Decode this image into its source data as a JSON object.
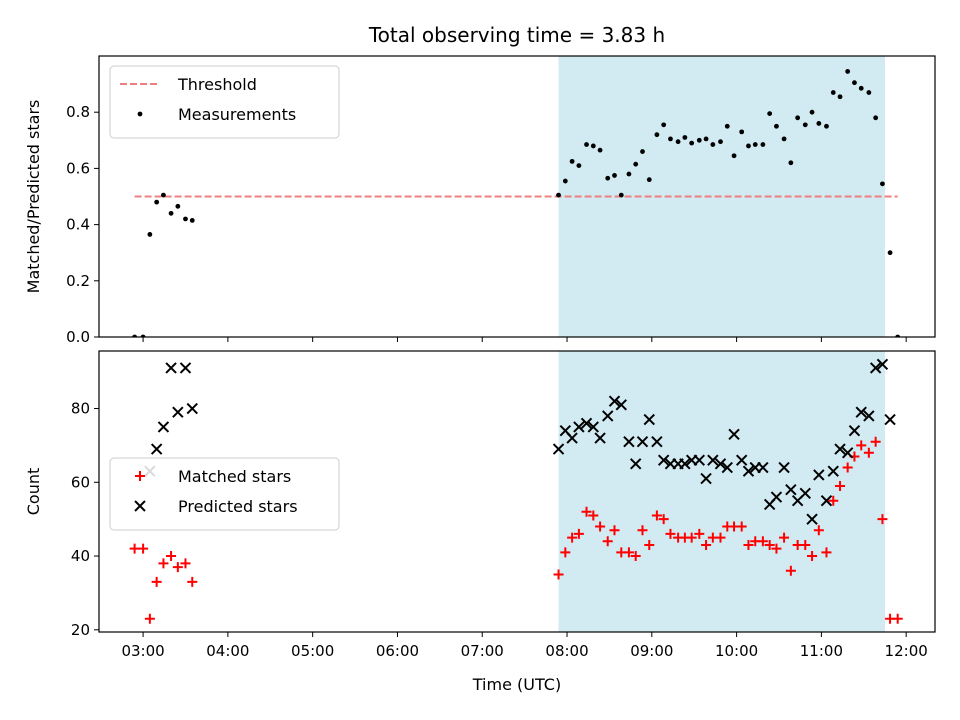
{
  "figure": {
    "title": "Total observing time = 3.83 h",
    "xlabel": "Time (UTC)"
  },
  "colors": {
    "threshold": "#f08080",
    "measurement": "#000000",
    "matched": "#ff0000",
    "predicted": "#000000",
    "span": "#add8e6"
  },
  "chart_data": [
    {
      "type": "scatter",
      "ylabel": "Matched/Predicted stars",
      "ylim": [
        0,
        1
      ],
      "yticks": [
        "0.0",
        "0.2",
        "0.4",
        "0.6",
        "0.8"
      ],
      "ytick_values": [
        0,
        0.2,
        0.4,
        0.6,
        0.8
      ],
      "xlim_hours": [
        2.48,
        12.34
      ],
      "xticks": [
        "03:00",
        "04:00",
        "05:00",
        "06:00",
        "07:00",
        "08:00",
        "09:00",
        "10:00",
        "11:00",
        "12:00"
      ],
      "xtick_hours": [
        3,
        4,
        5,
        6,
        7,
        8,
        9,
        10,
        11,
        12
      ],
      "shaded_span_hours": [
        7.9,
        11.75
      ],
      "legend_position": "upper left",
      "threshold": {
        "name": "Threshold",
        "value": 0.5,
        "x_range_hours": [
          2.9,
          11.9
        ]
      },
      "series": [
        {
          "name": "Measurements",
          "marker": "dot",
          "x_hours": [
            2.9,
            3.0,
            3.08,
            3.16,
            3.24,
            3.33,
            3.41,
            3.5,
            3.58,
            7.9,
            7.98,
            8.06,
            8.14,
            8.23,
            8.31,
            8.39,
            8.48,
            8.56,
            8.64,
            8.73,
            8.81,
            8.89,
            8.97,
            9.06,
            9.14,
            9.22,
            9.31,
            9.39,
            9.47,
            9.56,
            9.64,
            9.72,
            9.81,
            9.89,
            9.97,
            10.06,
            10.14,
            10.22,
            10.31,
            10.39,
            10.47,
            10.56,
            10.64,
            10.72,
            10.81,
            10.89,
            10.97,
            11.06,
            11.14,
            11.22,
            11.31,
            11.39,
            11.47,
            11.56,
            11.64,
            11.72,
            11.81,
            11.9
          ],
          "y": [
            0.0,
            0.0,
            0.365,
            0.48,
            0.505,
            0.44,
            0.465,
            0.42,
            0.415,
            0.505,
            0.555,
            0.625,
            0.61,
            0.685,
            0.68,
            0.665,
            0.565,
            0.575,
            0.505,
            0.58,
            0.615,
            0.66,
            0.56,
            0.72,
            0.755,
            0.705,
            0.695,
            0.71,
            0.69,
            0.7,
            0.705,
            0.685,
            0.695,
            0.75,
            0.645,
            0.73,
            0.68,
            0.685,
            0.685,
            0.795,
            0.75,
            0.705,
            0.62,
            0.78,
            0.755,
            0.8,
            0.76,
            0.75,
            0.87,
            0.855,
            0.945,
            0.905,
            0.885,
            0.87,
            0.78,
            0.545,
            0.3,
            0.0
          ]
        }
      ]
    },
    {
      "type": "scatter",
      "ylabel": "Count",
      "ylim": [
        19.4,
        95.6
      ],
      "yticks": [
        "20",
        "40",
        "60",
        "80"
      ],
      "ytick_values": [
        20,
        40,
        60,
        80
      ],
      "xlim_hours": [
        2.48,
        12.34
      ],
      "xticks": [
        "03:00",
        "04:00",
        "05:00",
        "06:00",
        "07:00",
        "08:00",
        "09:00",
        "10:00",
        "11:00",
        "12:00"
      ],
      "xtick_hours": [
        3,
        4,
        5,
        6,
        7,
        8,
        9,
        10,
        11,
        12
      ],
      "shaded_span_hours": [
        7.9,
        11.75
      ],
      "legend_position": "center left",
      "series": [
        {
          "name": "Matched stars",
          "marker": "plus",
          "x_hours": [
            2.9,
            3.0,
            3.08,
            3.16,
            3.24,
            3.33,
            3.41,
            3.5,
            3.58,
            7.9,
            7.98,
            8.06,
            8.14,
            8.23,
            8.31,
            8.39,
            8.48,
            8.56,
            8.64,
            8.73,
            8.81,
            8.89,
            8.97,
            9.06,
            9.14,
            9.22,
            9.31,
            9.39,
            9.47,
            9.56,
            9.64,
            9.72,
            9.81,
            9.89,
            9.97,
            10.06,
            10.14,
            10.22,
            10.31,
            10.39,
            10.47,
            10.56,
            10.64,
            10.72,
            10.81,
            10.89,
            10.97,
            11.06,
            11.14,
            11.22,
            11.31,
            11.39,
            11.47,
            11.56,
            11.64,
            11.72,
            11.81,
            11.9
          ],
          "y": [
            42,
            42,
            23,
            33,
            38,
            40,
            37,
            38,
            33,
            35,
            41,
            45,
            46,
            52,
            51,
            48,
            44,
            47,
            41,
            41,
            40,
            47,
            43,
            51,
            50,
            46,
            45,
            45,
            45,
            46,
            43,
            45,
            45,
            48,
            48,
            48,
            43,
            44,
            44,
            43,
            42,
            45,
            36,
            43,
            43,
            40,
            47,
            41,
            55,
            59,
            64,
            67,
            70,
            68,
            71,
            50,
            23,
            23
          ]
        },
        {
          "name": "Predicted stars",
          "marker": "x",
          "x_hours": [
            3.08,
            3.16,
            3.24,
            3.33,
            3.41,
            3.5,
            3.58,
            7.9,
            7.98,
            8.06,
            8.14,
            8.23,
            8.31,
            8.39,
            8.48,
            8.56,
            8.64,
            8.73,
            8.81,
            8.89,
            8.97,
            9.06,
            9.14,
            9.22,
            9.31,
            9.39,
            9.47,
            9.56,
            9.64,
            9.72,
            9.81,
            9.89,
            9.97,
            10.06,
            10.14,
            10.22,
            10.31,
            10.39,
            10.47,
            10.56,
            10.64,
            10.72,
            10.81,
            10.89,
            10.97,
            11.06,
            11.14,
            11.22,
            11.31,
            11.39,
            11.47,
            11.56,
            11.64,
            11.72,
            11.81
          ],
          "y": [
            63,
            69,
            75,
            91,
            79,
            91,
            80,
            69,
            74,
            72,
            75,
            76,
            75,
            72,
            78,
            82,
            81,
            71,
            65,
            71,
            77,
            71,
            66,
            65,
            65,
            65,
            66,
            66,
            61,
            66,
            65,
            64,
            73,
            66,
            63,
            64,
            64,
            54,
            56,
            64,
            58,
            55,
            57,
            50,
            62,
            55,
            63,
            69,
            68,
            74,
            79,
            78,
            91,
            92,
            77
          ]
        }
      ]
    }
  ]
}
